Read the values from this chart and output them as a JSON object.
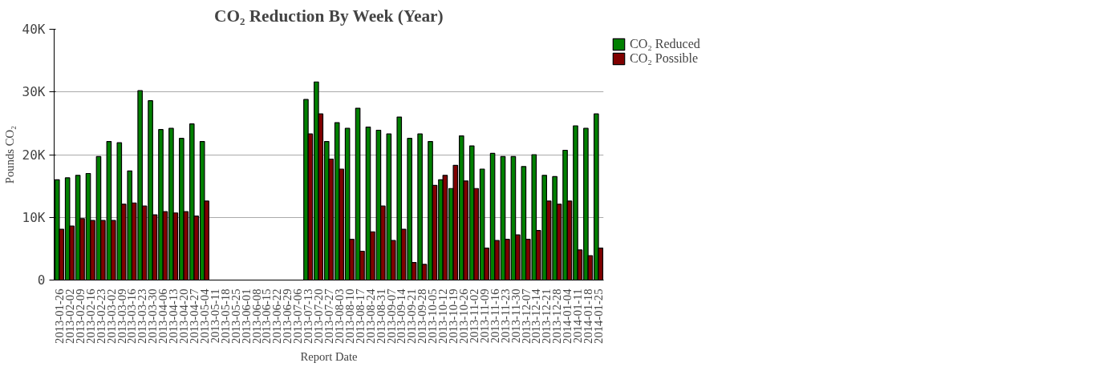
{
  "chart_data": {
    "type": "bar",
    "title": "CO₂ Reduction By Week (Year)",
    "xlabel": "Report Date",
    "ylabel": "Pounds CO₂",
    "categories": [
      "2013-01-26",
      "2013-02-02",
      "2013-02-09",
      "2013-02-16",
      "2013-02-23",
      "2013-03-02",
      "2013-03-09",
      "2013-03-16",
      "2013-03-23",
      "2013-03-30",
      "2013-04-06",
      "2013-04-13",
      "2013-04-20",
      "2013-04-27",
      "2013-05-04",
      "2013-05-11",
      "2013-05-18",
      "2013-05-25",
      "2013-06-01",
      "2013-06-08",
      "2013-06-15",
      "2013-06-22",
      "2013-06-29",
      "2013-07-06",
      "2013-07-13",
      "2013-07-20",
      "2013-07-27",
      "2013-08-03",
      "2013-08-10",
      "2013-08-17",
      "2013-08-24",
      "2013-08-31",
      "2013-09-07",
      "2013-09-14",
      "2013-09-21",
      "2013-09-28",
      "2013-10-05",
      "2013-10-12",
      "2013-10-19",
      "2013-10-26",
      "2013-11-02",
      "2013-11-09",
      "2013-11-16",
      "2013-11-23",
      "2013-11-30",
      "2013-12-07",
      "2013-12-14",
      "2013-12-21",
      "2013-12-28",
      "2014-01-04",
      "2014-01-11",
      "2014-01-18",
      "2014-01-25"
    ],
    "series": [
      {
        "name": "CO₂ Reduced",
        "color": "#008000",
        "values": [
          16000,
          16300,
          16700,
          17000,
          19700,
          22100,
          21900,
          17400,
          30200,
          28600,
          24000,
          24200,
          22600,
          24900,
          22100,
          null,
          null,
          null,
          null,
          null,
          null,
          null,
          null,
          null,
          28800,
          31600,
          22100,
          25100,
          24200,
          27400,
          24400,
          23900,
          23300,
          26000,
          22600,
          23300,
          22100,
          16000,
          14600,
          23000,
          21400,
          17700,
          20200,
          19700,
          19700,
          18100,
          20000,
          16700,
          16500,
          20700,
          24600,
          24200,
          26500
        ]
      },
      {
        "name": "CO₂ Possible",
        "color": "#800000",
        "values": [
          8100,
          8600,
          9800,
          9500,
          9500,
          9500,
          12100,
          12300,
          11800,
          10400,
          10900,
          10700,
          10900,
          10200,
          12600,
          null,
          null,
          null,
          null,
          null,
          null,
          null,
          null,
          null,
          23300,
          26500,
          19300,
          17700,
          6500,
          4600,
          7700,
          11800,
          6300,
          8100,
          2800,
          2500,
          15100,
          16700,
          18300,
          15800,
          14600,
          5100,
          6300,
          6500,
          7200,
          6500,
          7900,
          12600,
          12100,
          12600,
          4800,
          3900,
          5100
        ]
      }
    ],
    "ylim": [
      0,
      40000
    ],
    "yticks": [
      0,
      {
        "value": 10000,
        "label": "10K"
      },
      {
        "value": 20000,
        "label": "20K"
      },
      {
        "value": 30000,
        "label": "30K"
      },
      {
        "value": 40000,
        "label": "40K"
      }
    ],
    "grid": "y",
    "legend": "top right"
  }
}
